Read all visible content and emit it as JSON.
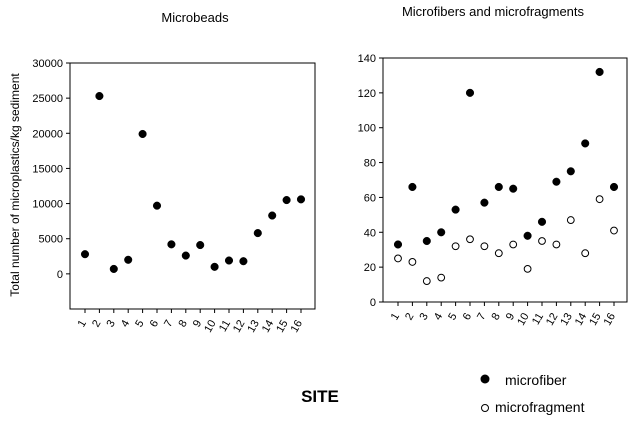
{
  "chart_data": [
    {
      "type": "scatter",
      "title": "Microbeads",
      "xlabel": "SITE",
      "ylabel": "Total number of microplastics/kg sediment",
      "x": [
        "1",
        "2",
        "3",
        "4",
        "5",
        "6",
        "7",
        "8",
        "9",
        "10",
        "11",
        "12",
        "13",
        "14",
        "15",
        "16"
      ],
      "ylim": [
        -5000,
        30000
      ],
      "yticks": [
        0,
        5000,
        10000,
        15000,
        20000,
        25000,
        30000
      ],
      "series": [
        {
          "name": "microbeads",
          "marker": "filled",
          "values": [
            2800,
            25300,
            700,
            2000,
            19900,
            9700,
            4200,
            2600,
            4100,
            1000,
            1900,
            1800,
            5800,
            8300,
            10500,
            10600
          ]
        }
      ]
    },
    {
      "type": "scatter",
      "title": "Microfibers and microfragments",
      "xlabel": "SITE",
      "x": [
        "1",
        "2",
        "3",
        "4",
        "5",
        "6",
        "7",
        "8",
        "9",
        "10",
        "11",
        "12",
        "13",
        "14",
        "15",
        "16"
      ],
      "ylim": [
        0,
        140
      ],
      "yticks": [
        0,
        20,
        40,
        60,
        80,
        100,
        120,
        140
      ],
      "series": [
        {
          "name": "microfiber",
          "marker": "filled",
          "values": [
            33,
            66,
            35,
            40,
            53,
            120,
            57,
            66,
            65,
            38,
            46,
            69,
            75,
            91,
            132,
            66
          ]
        },
        {
          "name": "microfragment",
          "marker": "open",
          "values": [
            25,
            23,
            12,
            14,
            32,
            36,
            32,
            28,
            33,
            19,
            35,
            33,
            47,
            28,
            59,
            41
          ]
        }
      ]
    }
  ],
  "legend": {
    "microfiber_symbol": "●",
    "microfiber_label": "microfiber",
    "microfragment_symbol": "o",
    "microfragment_label": "microfragment"
  },
  "site_label": "SITE"
}
